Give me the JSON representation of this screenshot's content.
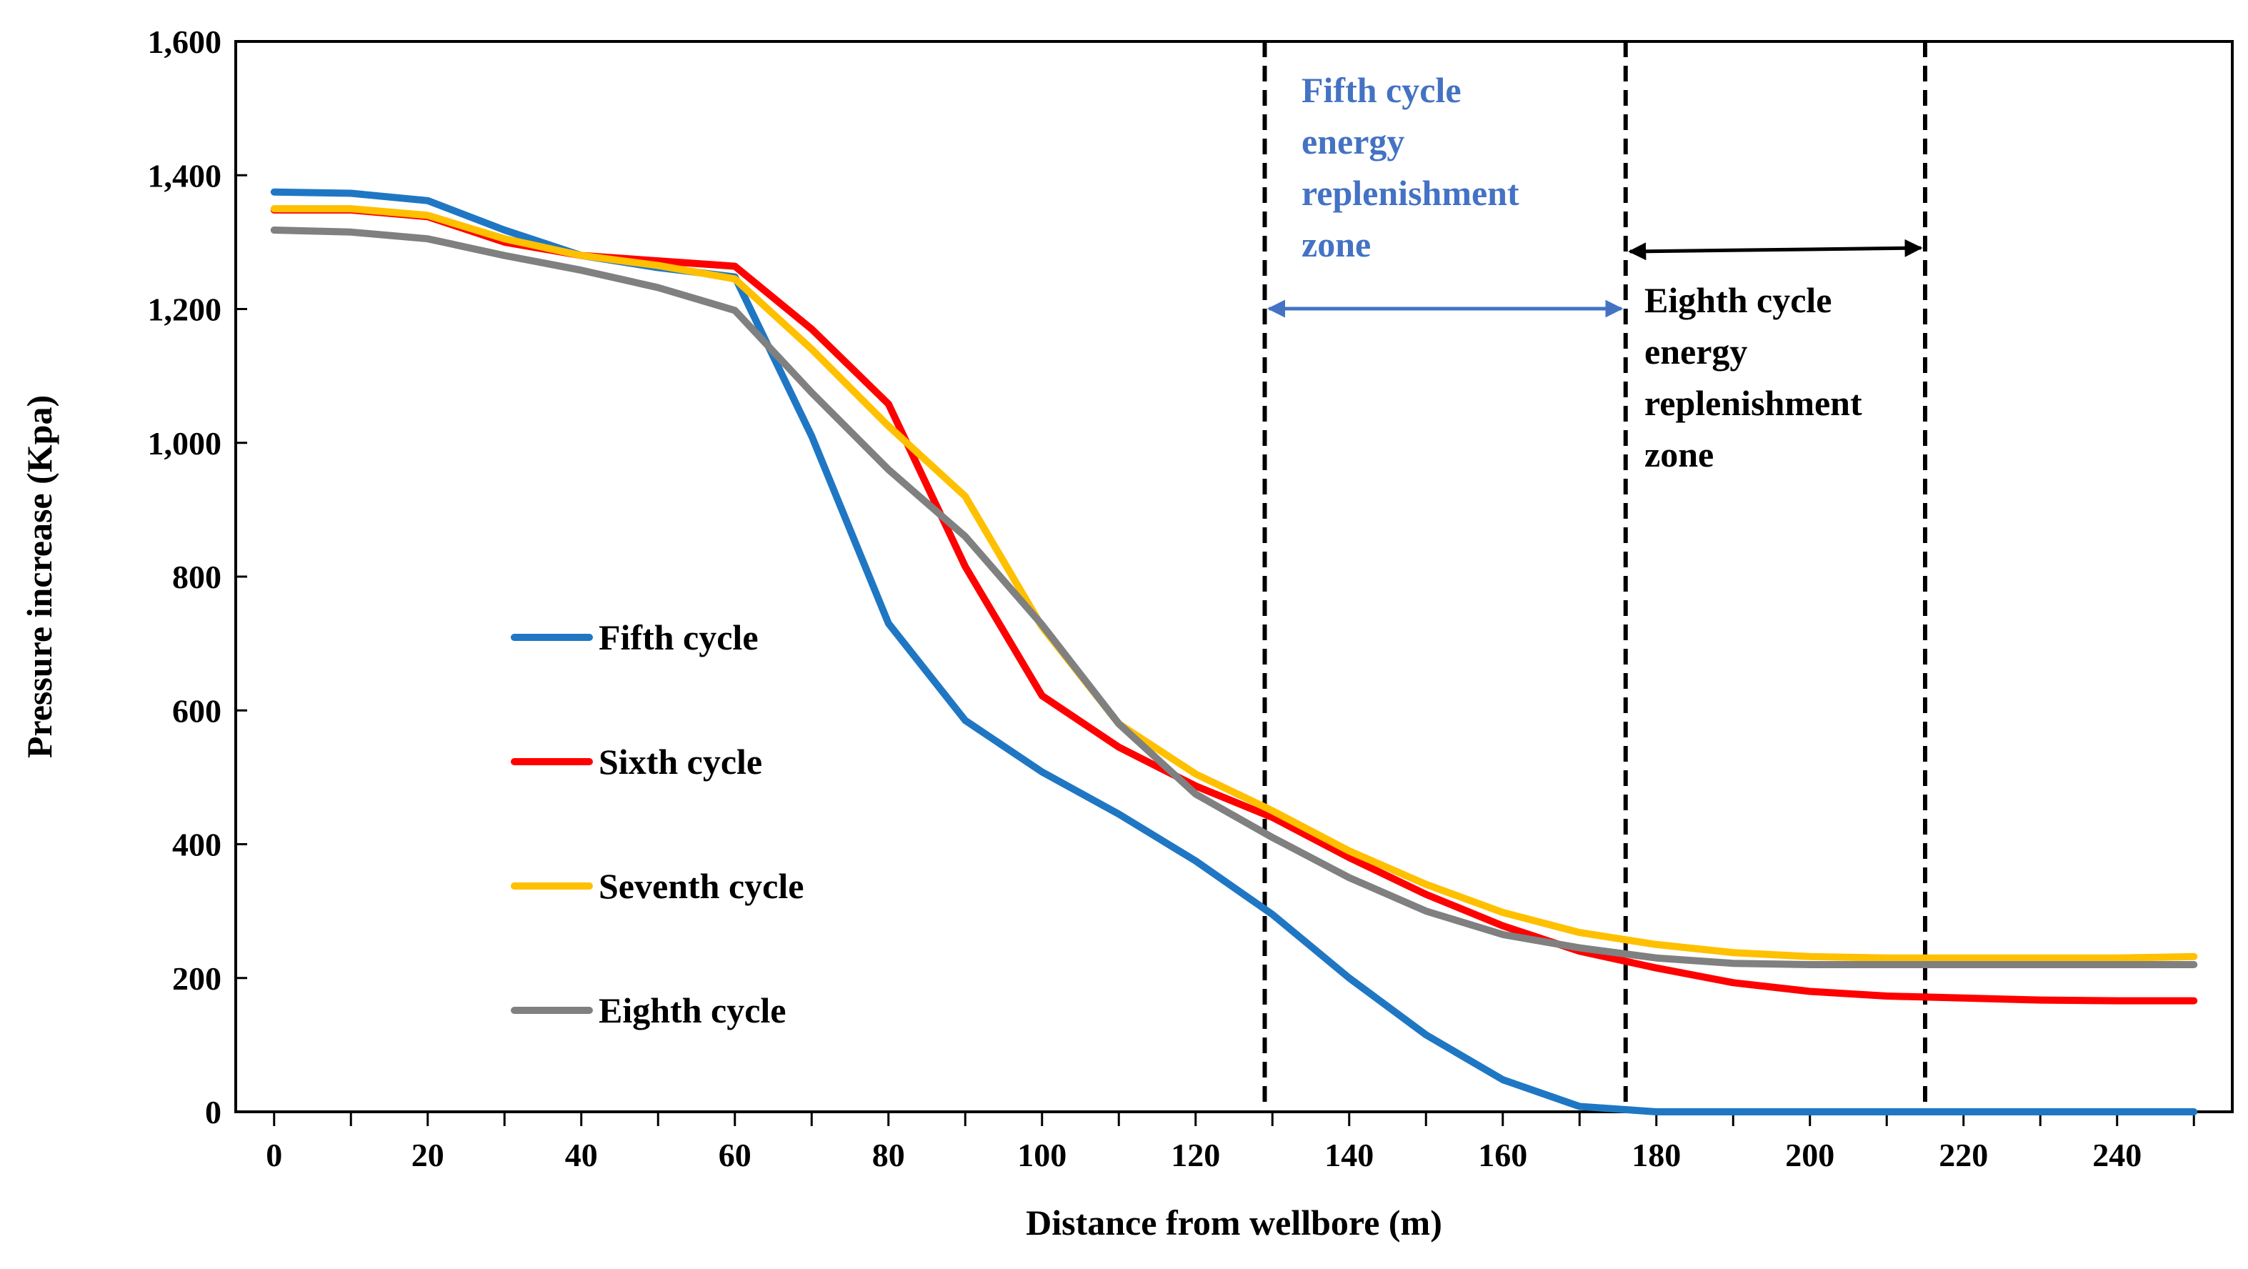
{
  "chart_data": {
    "type": "line",
    "title": "",
    "xlabel": "Distance from wellbore (m)",
    "ylabel": "Pressure increase (Kpa)",
    "xlim": [
      -5,
      255
    ],
    "ylim": [
      0,
      1600
    ],
    "xticks": [
      0,
      20,
      40,
      60,
      80,
      100,
      120,
      140,
      160,
      180,
      200,
      220,
      240
    ],
    "xtick_labels": [
      "0",
      "20",
      "40",
      "60",
      "80",
      "100",
      "120",
      "140",
      "160",
      "180",
      "200",
      "220",
      "240"
    ],
    "yticks": [
      0,
      200,
      400,
      600,
      800,
      1000,
      1200,
      1400,
      1600
    ],
    "ytick_labels": [
      "0",
      "200",
      "400",
      "600",
      "800",
      "1,000",
      "1,200",
      "1,400",
      "1,600"
    ],
    "x": [
      0,
      10,
      20,
      30,
      40,
      50,
      60,
      70,
      80,
      90,
      100,
      110,
      120,
      130,
      140,
      150,
      160,
      170,
      180,
      190,
      200,
      210,
      220,
      230,
      240,
      250
    ],
    "series": [
      {
        "name": "Fifth cycle",
        "color": "#1f77c4",
        "values": [
          1375,
          1373,
          1362,
          1318,
          1280,
          1262,
          1248,
          1010,
          730,
          585,
          508,
          445,
          375,
          295,
          200,
          115,
          48,
          8,
          0,
          0,
          0,
          0,
          0,
          0,
          0,
          0
        ]
      },
      {
        "name": "Sixth cycle",
        "color": "#ff0000",
        "values": [
          1348,
          1348,
          1338,
          1300,
          1280,
          1272,
          1264,
          1170,
          1058,
          815,
          622,
          545,
          487,
          440,
          380,
          325,
          278,
          240,
          215,
          193,
          180,
          173,
          170,
          167,
          166,
          166
        ]
      },
      {
        "name": "Seventh cycle",
        "color": "#ffc000",
        "values": [
          1350,
          1350,
          1340,
          1305,
          1280,
          1265,
          1245,
          1140,
          1025,
          920,
          725,
          580,
          505,
          450,
          390,
          340,
          298,
          268,
          250,
          238,
          232,
          230,
          230,
          230,
          230,
          232
        ]
      },
      {
        "name": "Eighth cycle",
        "color": "#808080",
        "values": [
          1318,
          1315,
          1305,
          1280,
          1258,
          1232,
          1198,
          1075,
          960,
          860,
          728,
          580,
          475,
          410,
          350,
          300,
          265,
          245,
          230,
          222,
          220,
          220,
          220,
          220,
          220,
          220
        ]
      }
    ],
    "zones": [
      {
        "label_lines": [
          "Fifth cycle",
          "energy",
          "replenishment",
          "zone"
        ],
        "x_start": 129,
        "x_end": 176,
        "color": "#4472c4"
      },
      {
        "label_lines": [
          "Eighth cycle",
          "energy",
          "replenishment",
          "zone"
        ],
        "x_start": 176,
        "x_end": 215,
        "color": "#000000"
      }
    ],
    "legend_position": "center-left"
  }
}
